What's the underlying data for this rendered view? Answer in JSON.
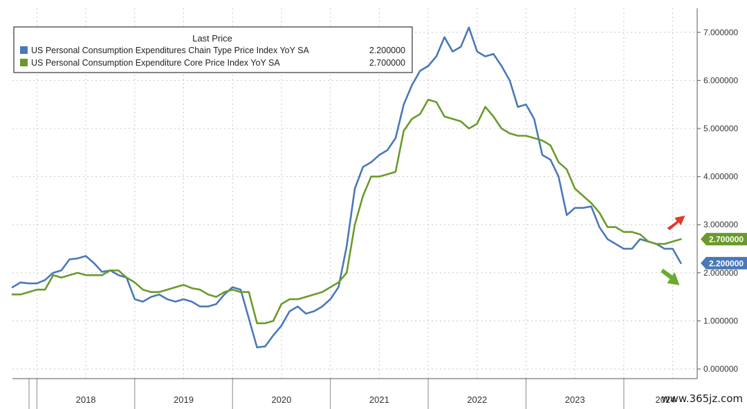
{
  "chart_data": {
    "type": "line",
    "legend": {
      "title": "Last Price",
      "placement": "top-left",
      "entries": [
        {
          "label": "US Personal Consumption Expenditures Chain Type Price Index YoY SA",
          "value": "2.200000"
        },
        {
          "label": "US Personal Consumption Expenditure Core Price Index YoY SA",
          "value": "2.700000"
        }
      ]
    },
    "x_axis": {
      "range": [
        "2017-10",
        "2024-10"
      ],
      "year_labels": [
        "2018",
        "2019",
        "2020",
        "2021",
        "2022",
        "2023",
        "2024"
      ]
    },
    "y_axis": {
      "position": "right",
      "range": [
        -0.2,
        7.5
      ],
      "ticks": [
        0,
        1,
        2,
        3,
        4,
        5,
        6,
        7
      ],
      "tick_labels": [
        "0.000000",
        "1.000000",
        "2.000000",
        "3.000000",
        "4.000000",
        "5.000000",
        "6.000000",
        "7.000000"
      ]
    },
    "grid": true,
    "colors": {
      "headline": "#4a78b8",
      "core": "#6a9a2a",
      "up_arrow": "#e03a2a",
      "down_arrow": "#6aaa2e"
    },
    "series": [
      {
        "name": "US Personal Consumption Expenditures Chain Type Price Index YoY SA",
        "last_label": "2.200000",
        "x": [
          "2017-10",
          "2017-11",
          "2017-12",
          "2018-01",
          "2018-02",
          "2018-03",
          "2018-04",
          "2018-05",
          "2018-06",
          "2018-07",
          "2018-08",
          "2018-09",
          "2018-10",
          "2018-11",
          "2018-12",
          "2019-01",
          "2019-02",
          "2019-03",
          "2019-04",
          "2019-05",
          "2019-06",
          "2019-07",
          "2019-08",
          "2019-09",
          "2019-10",
          "2019-11",
          "2019-12",
          "2020-01",
          "2020-02",
          "2020-03",
          "2020-04",
          "2020-05",
          "2020-06",
          "2020-07",
          "2020-08",
          "2020-09",
          "2020-10",
          "2020-11",
          "2020-12",
          "2021-01",
          "2021-02",
          "2021-03",
          "2021-04",
          "2021-05",
          "2021-06",
          "2021-07",
          "2021-08",
          "2021-09",
          "2021-10",
          "2021-11",
          "2021-12",
          "2022-01",
          "2022-02",
          "2022-03",
          "2022-04",
          "2022-05",
          "2022-06",
          "2022-07",
          "2022-08",
          "2022-09",
          "2022-10",
          "2022-11",
          "2022-12",
          "2023-01",
          "2023-02",
          "2023-03",
          "2023-04",
          "2023-05",
          "2023-06",
          "2023-07",
          "2023-08",
          "2023-09",
          "2023-10",
          "2023-11",
          "2023-12",
          "2024-01",
          "2024-02",
          "2024-03",
          "2024-04",
          "2024-05",
          "2024-06",
          "2024-07",
          "2024-08"
        ],
        "values": [
          1.7,
          1.8,
          1.78,
          1.78,
          1.85,
          2.0,
          2.05,
          2.28,
          2.3,
          2.35,
          2.2,
          2.02,
          2.05,
          1.95,
          1.9,
          1.45,
          1.4,
          1.5,
          1.55,
          1.45,
          1.4,
          1.45,
          1.4,
          1.3,
          1.3,
          1.35,
          1.55,
          1.7,
          1.65,
          1.05,
          0.45,
          0.47,
          0.7,
          0.9,
          1.2,
          1.3,
          1.15,
          1.2,
          1.3,
          1.45,
          1.7,
          2.55,
          3.75,
          4.2,
          4.3,
          4.45,
          4.55,
          4.8,
          5.5,
          5.9,
          6.2,
          6.3,
          6.5,
          6.9,
          6.6,
          6.7,
          7.1,
          6.6,
          6.5,
          6.55,
          6.3,
          6.0,
          5.45,
          5.5,
          5.2,
          4.45,
          4.35,
          4.0,
          3.2,
          3.35,
          3.35,
          3.38,
          2.95,
          2.7,
          2.6,
          2.5,
          2.5,
          2.7,
          2.65,
          2.6,
          2.5,
          2.5,
          2.2
        ]
      },
      {
        "name": "US Personal Consumption Expenditure Core Price Index YoY SA",
        "last_label": "2.700000",
        "x": [
          "2017-10",
          "2017-11",
          "2017-12",
          "2018-01",
          "2018-02",
          "2018-03",
          "2018-04",
          "2018-05",
          "2018-06",
          "2018-07",
          "2018-08",
          "2018-09",
          "2018-10",
          "2018-11",
          "2018-12",
          "2019-01",
          "2019-02",
          "2019-03",
          "2019-04",
          "2019-05",
          "2019-06",
          "2019-07",
          "2019-08",
          "2019-09",
          "2019-10",
          "2019-11",
          "2019-12",
          "2020-01",
          "2020-02",
          "2020-03",
          "2020-04",
          "2020-05",
          "2020-06",
          "2020-07",
          "2020-08",
          "2020-09",
          "2020-10",
          "2020-11",
          "2020-12",
          "2021-01",
          "2021-02",
          "2021-03",
          "2021-04",
          "2021-05",
          "2021-06",
          "2021-07",
          "2021-08",
          "2021-09",
          "2021-10",
          "2021-11",
          "2021-12",
          "2022-01",
          "2022-02",
          "2022-03",
          "2022-04",
          "2022-05",
          "2022-06",
          "2022-07",
          "2022-08",
          "2022-09",
          "2022-10",
          "2022-11",
          "2022-12",
          "2023-01",
          "2023-02",
          "2023-03",
          "2023-04",
          "2023-05",
          "2023-06",
          "2023-07",
          "2023-08",
          "2023-09",
          "2023-10",
          "2023-11",
          "2023-12",
          "2024-01",
          "2024-02",
          "2024-03",
          "2024-04",
          "2024-05",
          "2024-06",
          "2024-07",
          "2024-08"
        ],
        "values": [
          1.55,
          1.55,
          1.6,
          1.65,
          1.65,
          1.95,
          1.9,
          1.95,
          2.0,
          1.95,
          1.95,
          1.95,
          2.05,
          2.05,
          1.9,
          1.8,
          1.65,
          1.6,
          1.6,
          1.65,
          1.7,
          1.75,
          1.68,
          1.65,
          1.55,
          1.5,
          1.6,
          1.65,
          1.6,
          1.6,
          0.95,
          0.95,
          1.0,
          1.35,
          1.45,
          1.45,
          1.5,
          1.55,
          1.6,
          1.7,
          1.8,
          2.0,
          3.0,
          3.6,
          4.0,
          4.0,
          4.05,
          4.1,
          4.95,
          5.2,
          5.3,
          5.6,
          5.55,
          5.25,
          5.2,
          5.15,
          5.0,
          5.1,
          5.45,
          5.25,
          5.0,
          4.9,
          4.85,
          4.85,
          4.8,
          4.75,
          4.65,
          4.3,
          4.15,
          3.75,
          3.6,
          3.45,
          3.25,
          2.95,
          2.95,
          2.85,
          2.85,
          2.8,
          2.65,
          2.6,
          2.6,
          2.65,
          2.7
        ]
      }
    ]
  },
  "watermark": "www.365jz.com"
}
